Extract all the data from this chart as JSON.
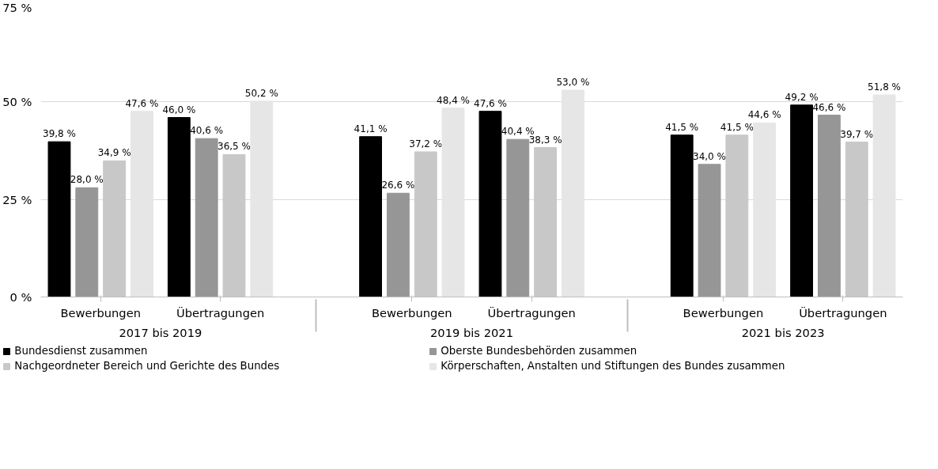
{
  "chart_data": {
    "type": "bar",
    "categories": [
      "Bewerbungen",
      "Übertragungen",
      "Bewerbungen",
      "Übertragungen",
      "Bewerbungen",
      "Übertragungen"
    ],
    "annotations": [
      "2017 bis 2019",
      "2019 bis 2021",
      "2021 bis 2023"
    ],
    "series": [
      {
        "name": "Bundesdienst zusammen",
        "color": "#000000",
        "values": [
          39.8,
          46.0,
          41.1,
          47.6,
          41.5,
          49.2
        ],
        "value_labels": [
          "39,8 %",
          "46,0 %",
          "41,1 %",
          "47,6 %",
          "41,5 %",
          "49,2 %"
        ]
      },
      {
        "name": "Oberste Bundesbehörden zusammen",
        "color": "#969696",
        "values": [
          28.0,
          40.6,
          26.6,
          40.4,
          34.0,
          46.6
        ],
        "value_labels": [
          "28,0 %",
          "40,6 %",
          "26,6 %",
          "40,4 %",
          "34,0 %",
          "46,6 %"
        ]
      },
      {
        "name": "Nachgeordneter Bereich und Gerichte des Bundes",
        "color": "#c8c8c8",
        "values": [
          34.9,
          36.5,
          37.2,
          38.3,
          41.5,
          39.7
        ],
        "value_labels": [
          "34,9 %",
          "36,5 %",
          "37,2 %",
          "38,3 %",
          "41,5 %",
          "39,7 %"
        ]
      },
      {
        "name": "Körperschaften, Anstalten und Stiftungen des Bundes zusammen",
        "color": "#e6e6e6",
        "values": [
          47.6,
          50.2,
          48.4,
          53.0,
          44.6,
          51.8
        ],
        "value_labels": [
          "47,6 %",
          "50,2 %",
          "48,4 %",
          "53,0 %",
          "44,6 %",
          "51,8 %"
        ]
      }
    ],
    "ylim": [
      0,
      75
    ],
    "yticks": [
      {
        "value": 0,
        "label": "0 %"
      },
      {
        "value": 25,
        "label": "25 %"
      },
      {
        "value": 50,
        "label": "50 %"
      },
      {
        "value": 75,
        "label": "75 %"
      }
    ],
    "grid": "y",
    "legend": "bottom"
  }
}
